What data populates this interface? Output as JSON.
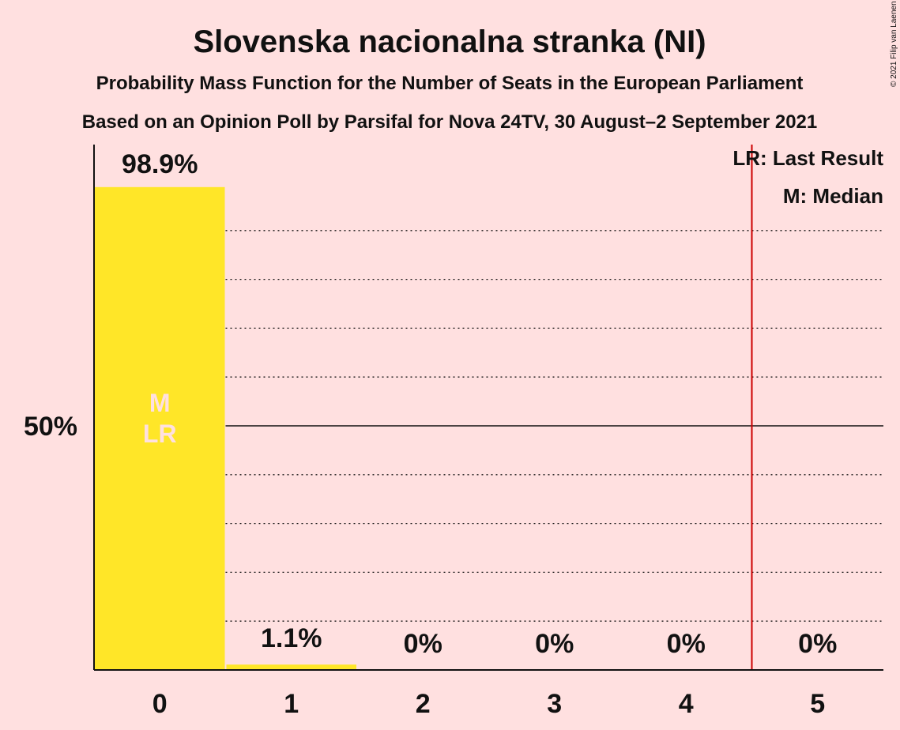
{
  "chart_data": {
    "type": "bar",
    "title": "Slovenska nacionalna stranka (NI)",
    "subtitle": "Probability Mass Function for the Number of Seats in the European Parliament",
    "subtitle2": "Based on an Opinion Poll by Parsifal for Nova 24TV, 30 August–2 September 2021",
    "categories": [
      "0",
      "1",
      "2",
      "3",
      "4",
      "5"
    ],
    "values": [
      98.9,
      1.1,
      0,
      0,
      0,
      0
    ],
    "value_labels": [
      "98.9%",
      "1.1%",
      "0%",
      "0%",
      "0%",
      "0%"
    ],
    "ylim": [
      0,
      100
    ],
    "yticks": [
      {
        "value": 50,
        "label": "50%"
      }
    ],
    "grid": true,
    "bar_color": "#ffe628",
    "last_result_color": "#cc0000",
    "last_result_seats": 4.5,
    "markers": {
      "median_seat": 0,
      "last_result_seat": 0,
      "median_label": "M",
      "last_result_label": "LR"
    },
    "legend": {
      "placement": "top-right",
      "entries": [
        "LR: Last Result",
        "M: Median"
      ]
    },
    "copyright": "© 2021 Filip van Laenen"
  }
}
